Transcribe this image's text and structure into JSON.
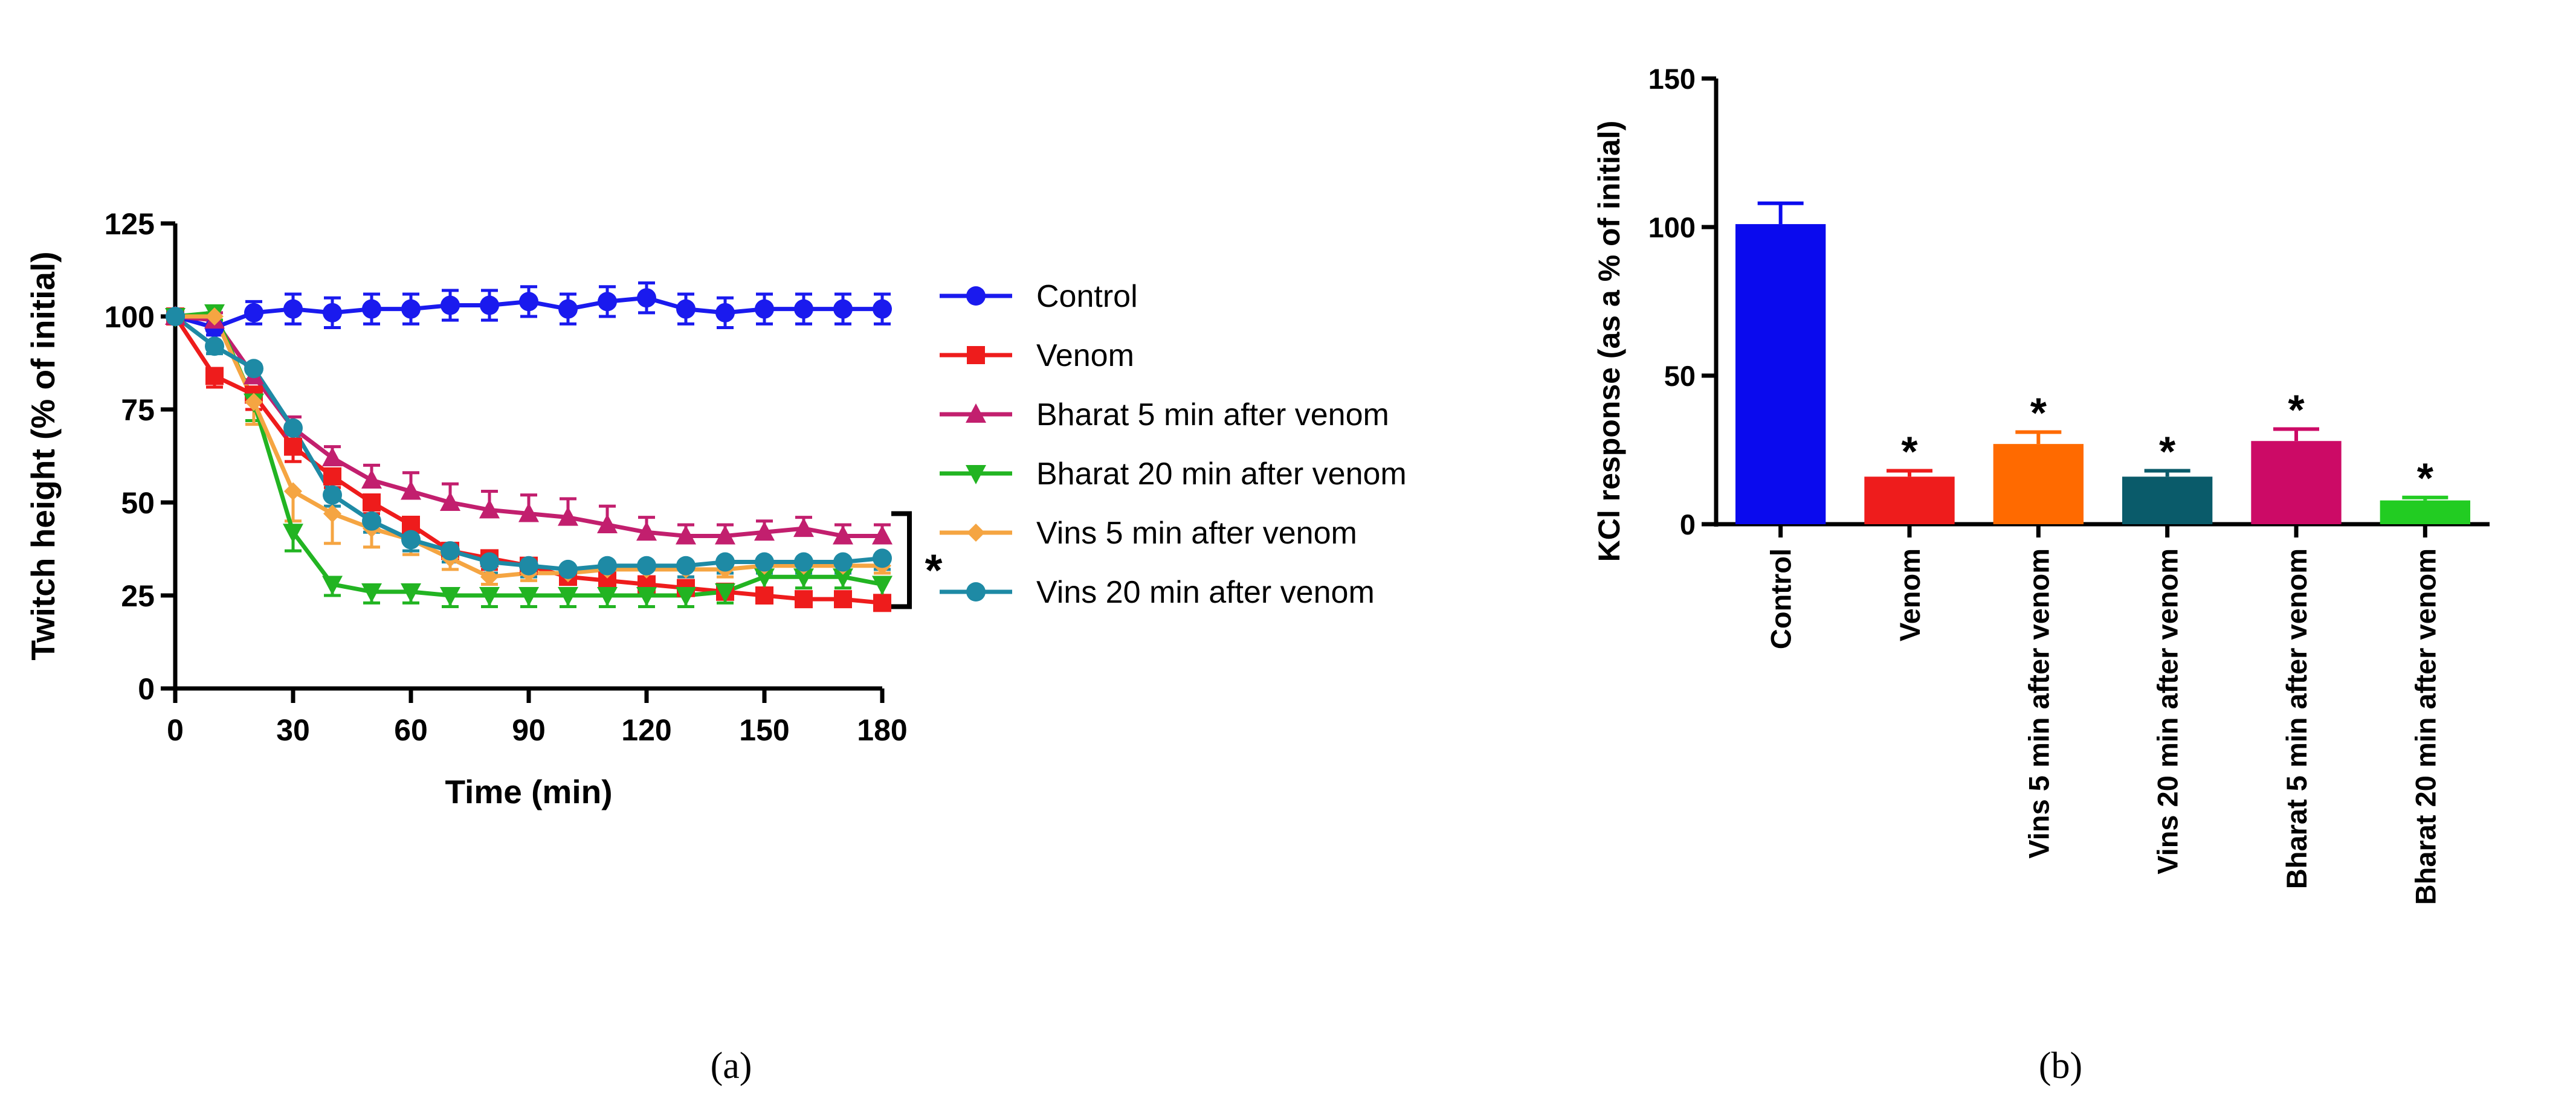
{
  "chart_data": [
    {
      "type": "line",
      "panel_label": "(a)",
      "xlabel": "Time (min)",
      "ylabel": "Twitch height (% of initial)",
      "xlim": [
        0,
        180
      ],
      "ylim": [
        0,
        125
      ],
      "xticks": [
        0,
        30,
        60,
        90,
        120,
        150,
        180
      ],
      "yticks": [
        0,
        25,
        50,
        75,
        100,
        125
      ],
      "x": [
        0,
        10,
        20,
        30,
        40,
        50,
        60,
        70,
        80,
        90,
        100,
        110,
        120,
        130,
        140,
        150,
        160,
        170,
        180
      ],
      "legend_position": "right",
      "significance_label": "*",
      "series": [
        {
          "name": "Control",
          "color": "#1a1aee",
          "marker": "circle",
          "values": [
            100,
            97,
            101,
            102,
            101,
            102,
            102,
            103,
            103,
            104,
            102,
            104,
            105,
            102,
            101,
            102,
            102,
            102,
            102
          ],
          "errors": [
            0,
            2,
            3,
            4,
            4,
            4,
            4,
            4,
            4,
            4,
            4,
            4,
            4,
            4,
            4,
            4,
            4,
            4,
            4
          ]
        },
        {
          "name": "Venom",
          "color": "#ee1c1c",
          "marker": "square",
          "values": [
            100,
            84,
            79,
            65,
            57,
            50,
            44,
            37,
            35,
            33,
            30,
            29,
            28,
            27,
            26,
            25,
            24,
            24,
            23
          ],
          "errors": [
            0,
            3,
            4,
            4,
            3,
            3,
            3,
            3,
            3,
            2,
            2,
            2,
            2,
            2,
            2,
            2,
            2,
            2,
            2
          ]
        },
        {
          "name": "Bharat 5 min after venom",
          "color": "#c21f6e",
          "marker": "triangle-up",
          "values": [
            100,
            99,
            84,
            70,
            62,
            56,
            53,
            50,
            48,
            47,
            46,
            44,
            42,
            41,
            41,
            42,
            43,
            41,
            41
          ],
          "errors": [
            0,
            2,
            3,
            3,
            3,
            4,
            5,
            5,
            5,
            5,
            5,
            5,
            4,
            3,
            3,
            3,
            3,
            3,
            3
          ]
        },
        {
          "name": "Bharat 20 min after venom",
          "color": "#22b422",
          "marker": "triangle-down",
          "values": [
            100,
            101,
            77,
            42,
            28,
            26,
            26,
            25,
            25,
            25,
            25,
            25,
            25,
            25,
            26,
            30,
            30,
            30,
            28
          ],
          "errors": [
            0,
            2,
            5,
            5,
            3,
            3,
            3,
            3,
            3,
            3,
            3,
            3,
            3,
            3,
            3,
            3,
            3,
            3,
            3
          ]
        },
        {
          "name": "Vins 5 min after venom",
          "color": "#f5a542",
          "marker": "diamond",
          "values": [
            100,
            100,
            77,
            53,
            47,
            43,
            40,
            35,
            30,
            31,
            31,
            32,
            32,
            32,
            32,
            33,
            33,
            33,
            33
          ],
          "errors": [
            0,
            2,
            6,
            8,
            8,
            5,
            4,
            3,
            2,
            2,
            2,
            2,
            2,
            2,
            2,
            2,
            2,
            2,
            2
          ]
        },
        {
          "name": "Vins 20 min after venom",
          "color": "#1e8aa5",
          "marker": "circle",
          "values": [
            100,
            92,
            86,
            70,
            52,
            45,
            40,
            37,
            34,
            33,
            32,
            33,
            33,
            33,
            34,
            34,
            34,
            34,
            35
          ],
          "errors": [
            0,
            2,
            3,
            3,
            3,
            3,
            3,
            3,
            3,
            3,
            3,
            3,
            3,
            3,
            3,
            3,
            3,
            3,
            3
          ]
        }
      ]
    },
    {
      "type": "bar",
      "panel_label": "(b)",
      "xlabel": "",
      "ylabel": "KCl response (as a % of initial)",
      "ylim": [
        0,
        150
      ],
      "yticks": [
        0,
        50,
        100,
        150
      ],
      "categories": [
        "Control",
        "Venom",
        "Vins 5 min after venom",
        "Vins 20 min after venom",
        "Bharat 5 min after venom",
        "Bharat 20 min after venom"
      ],
      "values": [
        101,
        16,
        27,
        16,
        28,
        8
      ],
      "errors": [
        7,
        2,
        4,
        2,
        4,
        1
      ],
      "colors": [
        "#0a0aee",
        "#ee1c1c",
        "#ff6a00",
        "#0a5b6a",
        "#cc0a66",
        "#22cc22"
      ],
      "significance": [
        "",
        "*",
        "*",
        "*",
        "*",
        "*"
      ]
    }
  ]
}
